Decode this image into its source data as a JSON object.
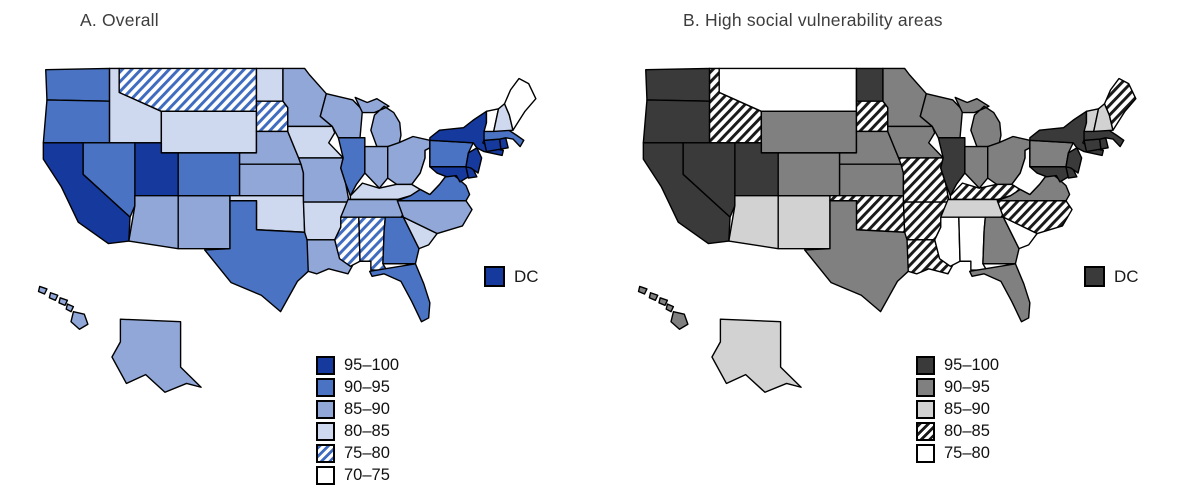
{
  "figure": {
    "background": "#ffffff",
    "panels": [
      {
        "id": "A",
        "title": "A. Overall",
        "dc": {
          "label": "DC",
          "bucket": "95-100"
        },
        "legend": [
          {
            "label": "95–100",
            "bucket": "95-100"
          },
          {
            "label": "90–95",
            "bucket": "90-95"
          },
          {
            "label": "85–90",
            "bucket": "85-90"
          },
          {
            "label": "80–85",
            "bucket": "80-85"
          },
          {
            "label": "75–80",
            "bucket": "75-80"
          },
          {
            "label": "70–75",
            "bucket": "70-75"
          }
        ],
        "buckets": {
          "95-100": {
            "type": "solid",
            "fill": "#16399d"
          },
          "90-95": {
            "type": "solid",
            "fill": "#4b73c3"
          },
          "85-90": {
            "type": "solid",
            "fill": "#91a7d8"
          },
          "80-85": {
            "type": "solid",
            "fill": "#ced8ee"
          },
          "75-80": {
            "type": "hatch",
            "fill": "#3f6cbf"
          },
          "70-75": {
            "type": "solid",
            "fill": "#ffffff"
          }
        },
        "states": {
          "WA": "90-95",
          "OR": "90-95",
          "CA": "95-100",
          "NV": "90-95",
          "ID": "80-85",
          "MT": "75-80",
          "WY": "80-85",
          "UT": "95-100",
          "CO": "90-95",
          "AZ": "85-90",
          "NM": "85-90",
          "ND": "80-85",
          "SD": "75-80",
          "NE": "85-90",
          "KS": "85-90",
          "OK": "80-85",
          "TX": "90-95",
          "MN": "85-90",
          "IA": "80-85",
          "MO": "85-90",
          "AR": "80-85",
          "LA": "85-90",
          "WI": "85-90",
          "IL": "90-95",
          "MI": "85-90",
          "IN": "85-90",
          "OH": "85-90",
          "KY": "80-85",
          "TN": "85-90",
          "MS": "75-80",
          "AL": "75-80",
          "GA": "90-95",
          "FL": "90-95",
          "SC": "80-85",
          "NC": "85-90",
          "VA": "90-95",
          "WV": "70-75",
          "MD": "95-100",
          "DE": "95-100",
          "PA": "90-95",
          "NJ": "95-100",
          "NY": "95-100",
          "CT": "95-100",
          "RI": "95-100",
          "MA": "90-95",
          "VT": "70-75",
          "NH": "80-85",
          "ME": "70-75",
          "AK": "85-90",
          "HI": "85-90"
        }
      },
      {
        "id": "B",
        "title": "B. High social vulnerability areas",
        "dc": {
          "label": "DC",
          "bucket": "95-100"
        },
        "legend": [
          {
            "label": "95–100",
            "bucket": "95-100"
          },
          {
            "label": "90–95",
            "bucket": "90-95"
          },
          {
            "label": "85–90",
            "bucket": "85-90"
          },
          {
            "label": "80–85",
            "bucket": "80-85"
          },
          {
            "label": "75–80",
            "bucket": "75-80"
          }
        ],
        "buckets": {
          "95-100": {
            "type": "solid",
            "fill": "#3a3a3a"
          },
          "90-95": {
            "type": "solid",
            "fill": "#808080"
          },
          "85-90": {
            "type": "solid",
            "fill": "#d2d2d2"
          },
          "80-85": {
            "type": "hatch",
            "fill": "#1a1a1a"
          },
          "75-80": {
            "type": "solid",
            "fill": "#ffffff"
          }
        },
        "states": {
          "WA": "95-100",
          "OR": "95-100",
          "CA": "95-100",
          "NV": "95-100",
          "ID": "80-85",
          "MT": "75-80",
          "WY": "90-95",
          "UT": "95-100",
          "CO": "90-95",
          "AZ": "85-90",
          "NM": "85-90",
          "ND": "95-100",
          "SD": "80-85",
          "NE": "90-95",
          "KS": "90-95",
          "OK": "80-85",
          "TX": "90-95",
          "MN": "90-95",
          "IA": "90-95",
          "MO": "80-85",
          "AR": "80-85",
          "LA": "80-85",
          "WI": "90-95",
          "IL": "95-100",
          "MI": "90-95",
          "IN": "90-95",
          "OH": "90-95",
          "KY": "80-85",
          "TN": "85-90",
          "MS": "75-80",
          "AL": "75-80",
          "GA": "90-95",
          "FL": "90-95",
          "SC": "75-80",
          "NC": "80-85",
          "VA": "90-95",
          "WV": "75-80",
          "MD": "95-100",
          "DE": "95-100",
          "PA": "90-95",
          "NJ": "95-100",
          "NY": "95-100",
          "CT": "95-100",
          "RI": "95-100",
          "MA": "95-100",
          "VT": "85-90",
          "NH": "85-90",
          "ME": "80-85",
          "AK": "85-90",
          "HI": "90-95"
        }
      }
    ]
  }
}
